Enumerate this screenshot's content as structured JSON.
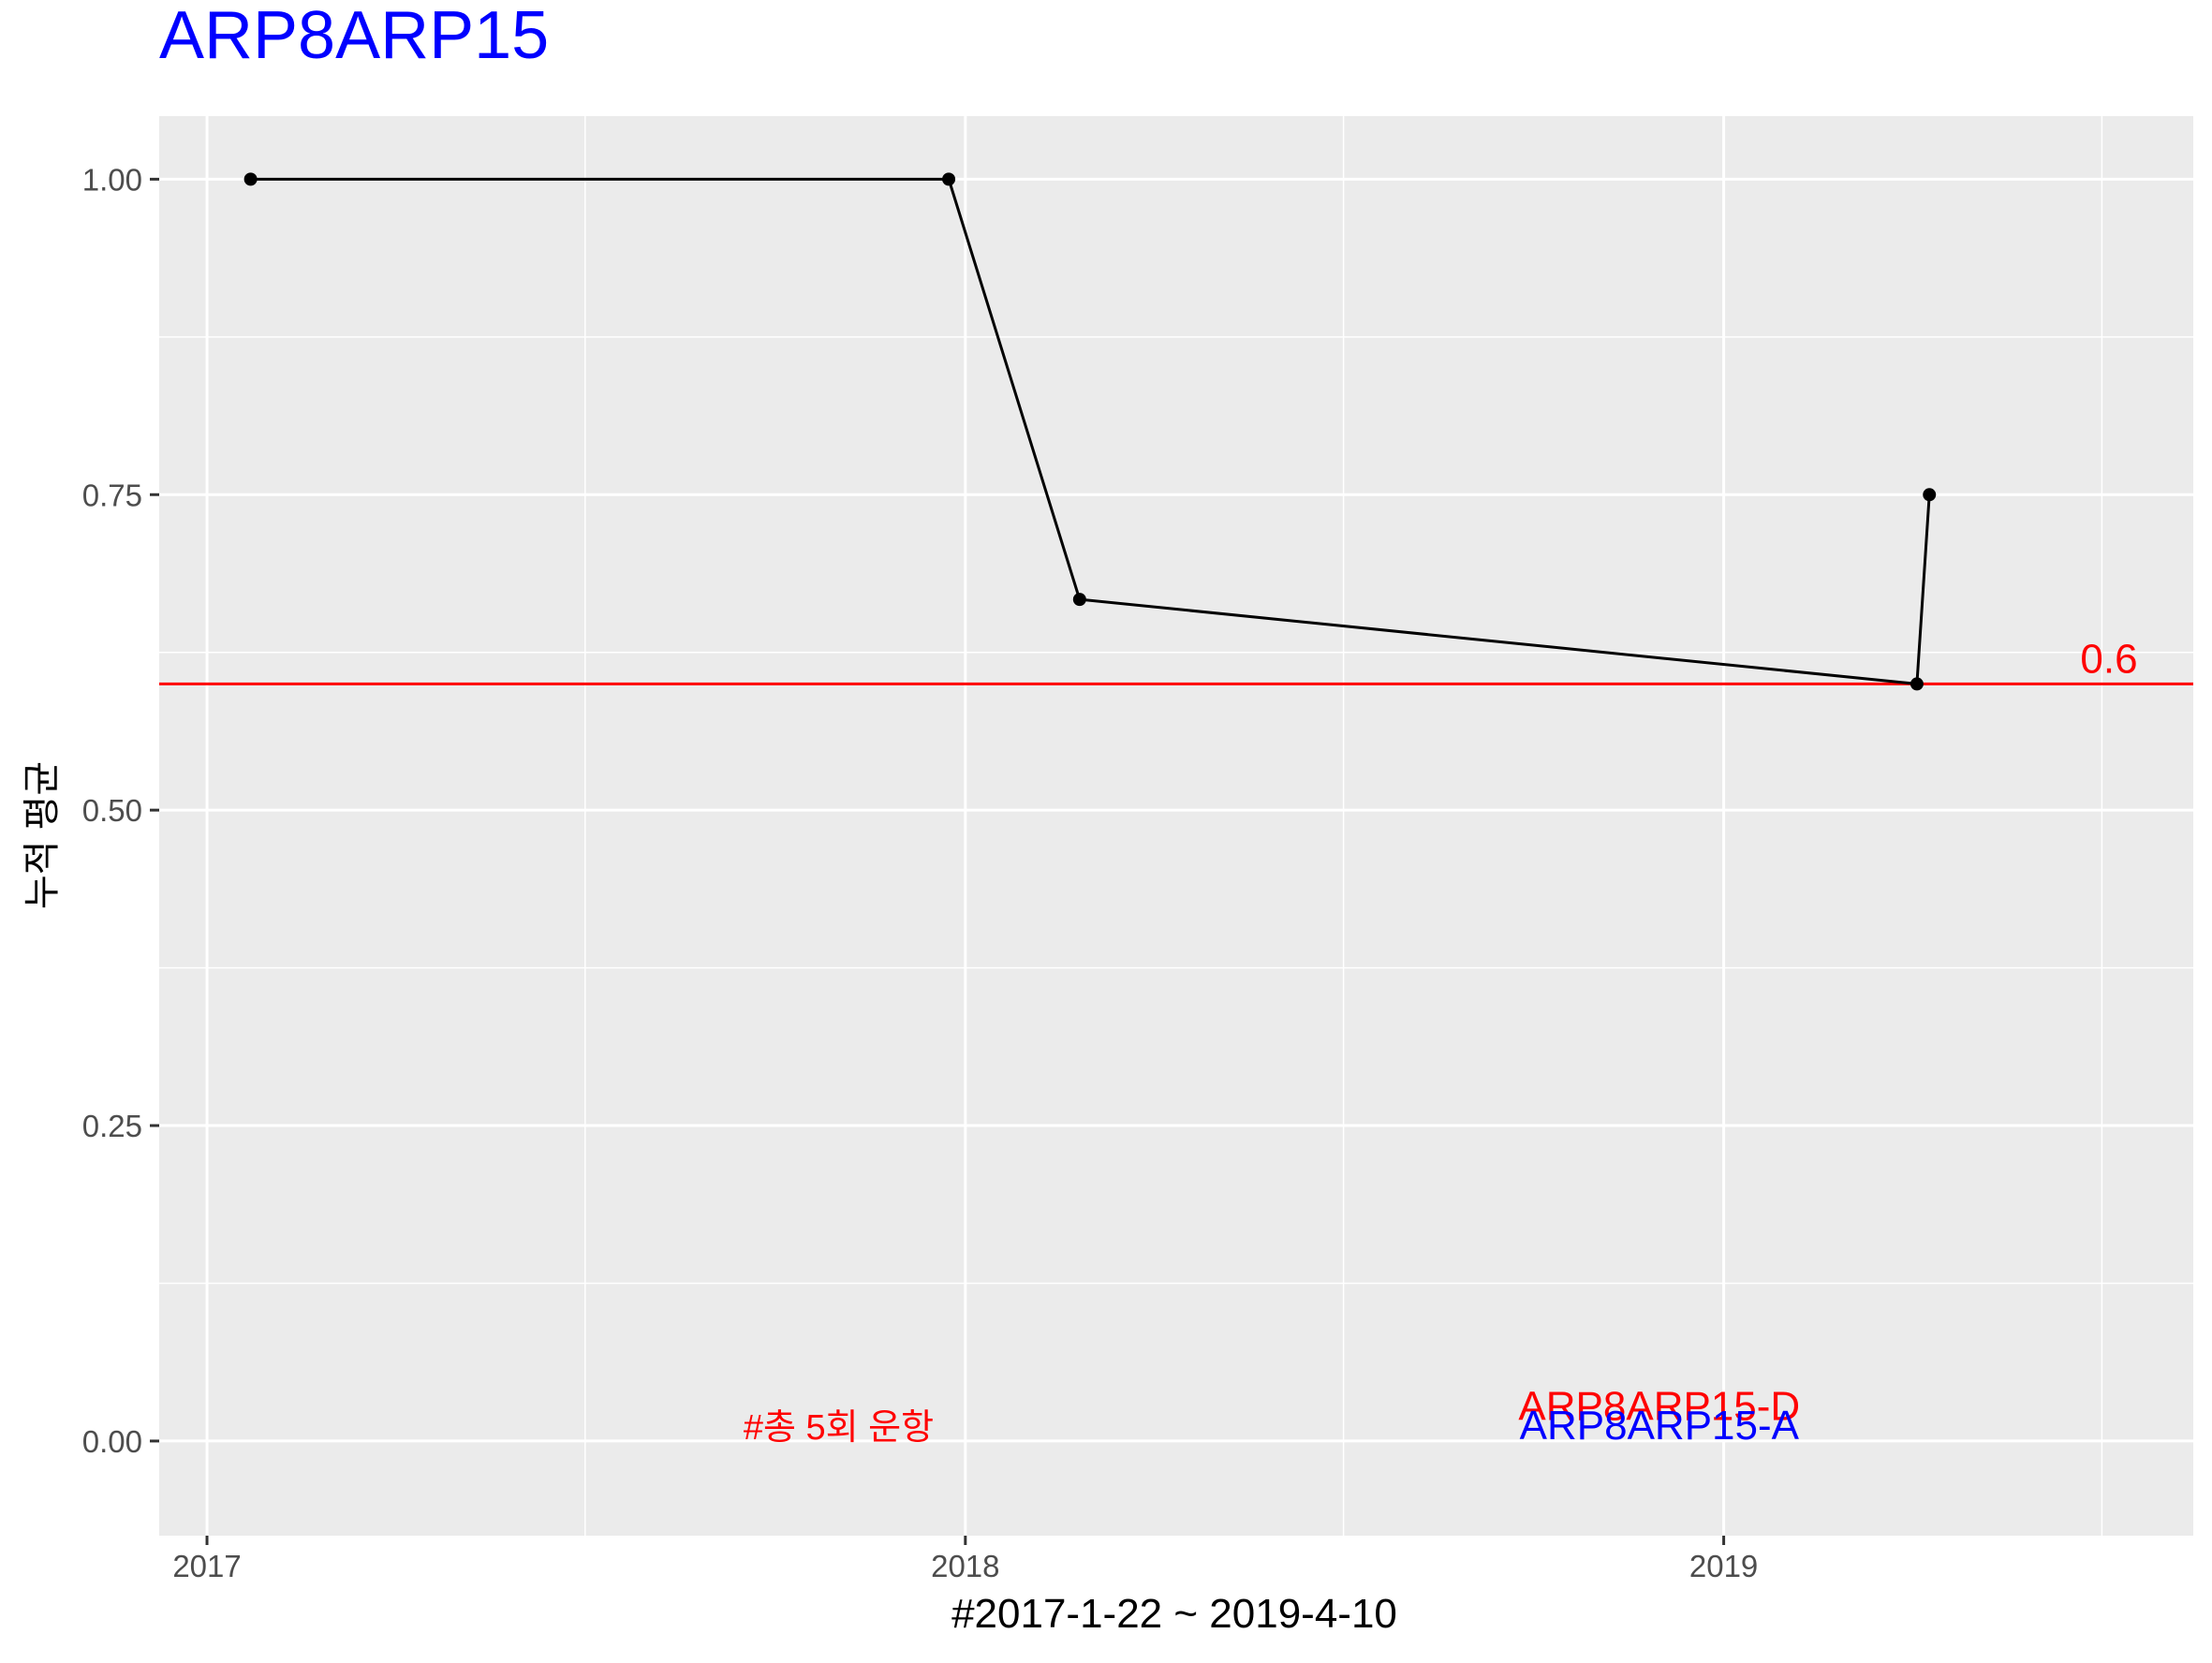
{
  "chart_data": {
    "type": "line",
    "title": "ARP8ARP15",
    "xlabel": "#2017-1-22 ~ 2019-4-10",
    "ylabel": "누적 평균",
    "x_is_date": true,
    "xlim": [
      "2016-12-09",
      "2019-08-15"
    ],
    "ylim": [
      -0.075,
      1.05
    ],
    "x_ticks": [
      {
        "value": "2017-01-01",
        "label": "2017"
      },
      {
        "value": "2018-01-01",
        "label": "2018"
      },
      {
        "value": "2019-01-01",
        "label": "2019"
      }
    ],
    "y_ticks": [
      {
        "value": 0.0,
        "label": "0.00"
      },
      {
        "value": 0.25,
        "label": "0.25"
      },
      {
        "value": 0.5,
        "label": "0.50"
      },
      {
        "value": 0.75,
        "label": "0.75"
      },
      {
        "value": 1.0,
        "label": "1.00"
      }
    ],
    "x_minor_ticks": [
      "2017-07-02",
      "2018-07-02",
      "2019-07-02"
    ],
    "y_minor_ticks": [
      0.125,
      0.375,
      0.625,
      0.875
    ],
    "series": [
      {
        "points": [
          {
            "x": "2017-01-22",
            "y": 1.0
          },
          {
            "x": "2017-12-24",
            "y": 1.0
          },
          {
            "x": "2018-02-25",
            "y": 0.667
          },
          {
            "x": "2019-04-04",
            "y": 0.6
          },
          {
            "x": "2019-04-10",
            "y": 0.75
          }
        ],
        "color": "#000000"
      }
    ],
    "reference_line": {
      "y": 0.6,
      "color": "#ff0000",
      "label": "0.6"
    },
    "annotations": [
      {
        "text": "#총 5회 운항",
        "x": "2017-11-01",
        "y": 0.0,
        "color": "#ff0000",
        "font_size": "small"
      },
      {
        "text": "ARP8ARP15-D",
        "x": "2018-12-01",
        "y": 0.015,
        "color": "#ff0000",
        "font_size": "large"
      },
      {
        "text": "ARP8ARP15-A",
        "x": "2018-12-01",
        "y": 0.0,
        "color": "#0000ff",
        "font_size": "large"
      }
    ],
    "title_color": "#0000ff",
    "panel_background": "#ebebeb",
    "grid": true,
    "legend": "none"
  }
}
